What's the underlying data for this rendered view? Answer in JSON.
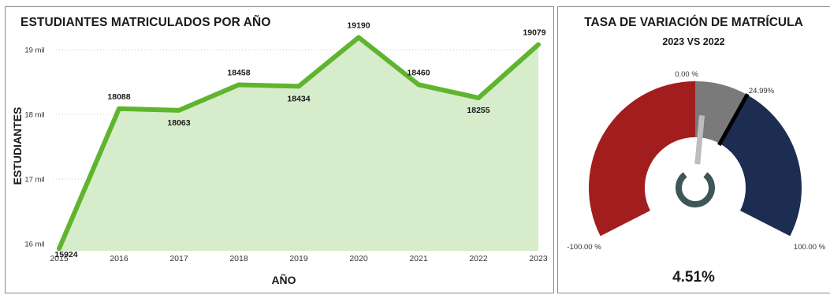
{
  "chart_data": [
    {
      "type": "area",
      "title": "ESTUDIANTES MATRICULADOS POR AÑO",
      "xlabel": "AÑO",
      "ylabel": "ESTUDIANTES",
      "categories": [
        "2015",
        "2016",
        "2017",
        "2018",
        "2019",
        "2020",
        "2021",
        "2022",
        "2023"
      ],
      "values": [
        15924,
        18088,
        18063,
        18458,
        18434,
        19190,
        18460,
        18255,
        19079
      ],
      "data_labels": [
        "15924",
        "18088",
        "18063",
        "18458",
        "18434",
        "19190",
        "18460",
        "18255",
        "19079"
      ],
      "y_ticks": [
        {
          "value": 16000,
          "label": "16 mil"
        },
        {
          "value": 17000,
          "label": "17 mil"
        },
        {
          "value": 18000,
          "label": "18 mil"
        },
        {
          "value": 19000,
          "label": "19 mil"
        }
      ],
      "ylim": [
        15500,
        19500
      ],
      "grid": true,
      "colors": {
        "line": "#5fb52e",
        "fill": "#d6eccb",
        "grid": "#c8c8c8"
      }
    },
    {
      "type": "gauge",
      "title": "TASA DE VARIACIÓN DE MATRÍCULA",
      "subtitle": "2023 VS 2022",
      "value": 4.51,
      "value_label": "4.51%",
      "range": [
        -100,
        100
      ],
      "tick_labels": [
        "-100.00 %",
        "0.00 %",
        "24.99%",
        "100.00 %"
      ],
      "bands": [
        {
          "from": -100,
          "to": 0,
          "color": "#a21e1e"
        },
        {
          "from": 0,
          "to": 24.99,
          "color": "#7a7a7a"
        },
        {
          "from": 24.99,
          "to": 100,
          "color": "#1d2d52"
        }
      ],
      "target": 24.99,
      "colors": {
        "needle": "#bdbdbd",
        "hub": "#3e5656",
        "target": "#000000"
      }
    }
  ]
}
